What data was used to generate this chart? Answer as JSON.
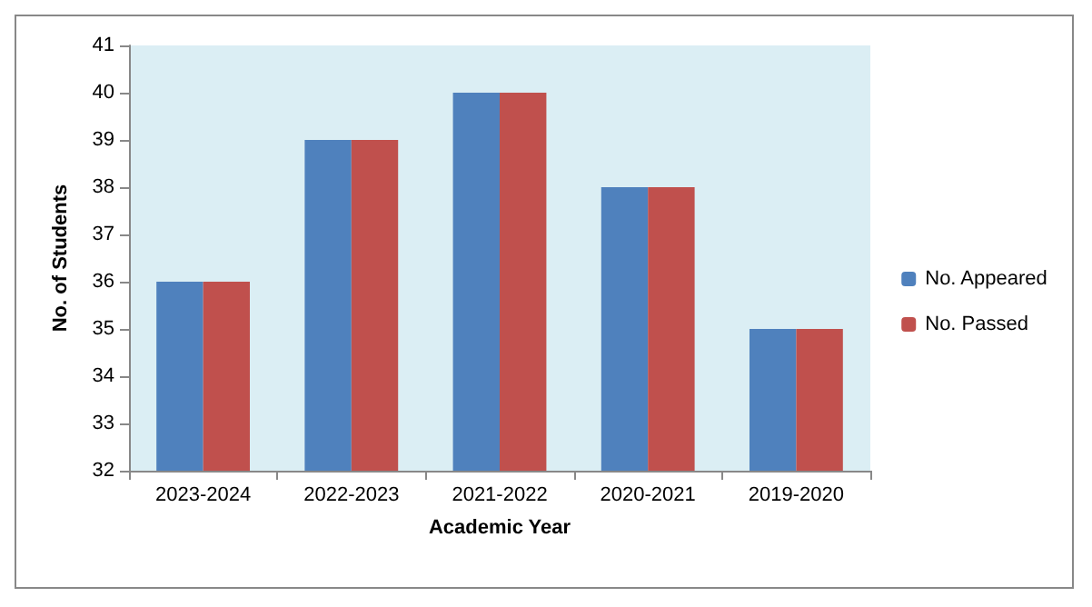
{
  "chart_data": {
    "type": "bar",
    "xlabel": "Academic Year",
    "ylabel": "No. of Students",
    "categories": [
      "2023-2024",
      "2022-2023",
      "2021-2022",
      "2020-2021",
      "2019-2020"
    ],
    "series": [
      {
        "name": "No. Appeared",
        "color": "#4f81bd",
        "values": [
          36,
          39,
          40,
          38,
          35
        ]
      },
      {
        "name": "No. Passed",
        "color": "#c0504d",
        "values": [
          36,
          39,
          40,
          38,
          35
        ]
      }
    ],
    "ylim": [
      32,
      41
    ],
    "yticks": [
      32,
      33,
      34,
      35,
      36,
      37,
      38,
      39,
      40,
      41
    ],
    "legend": "right"
  }
}
